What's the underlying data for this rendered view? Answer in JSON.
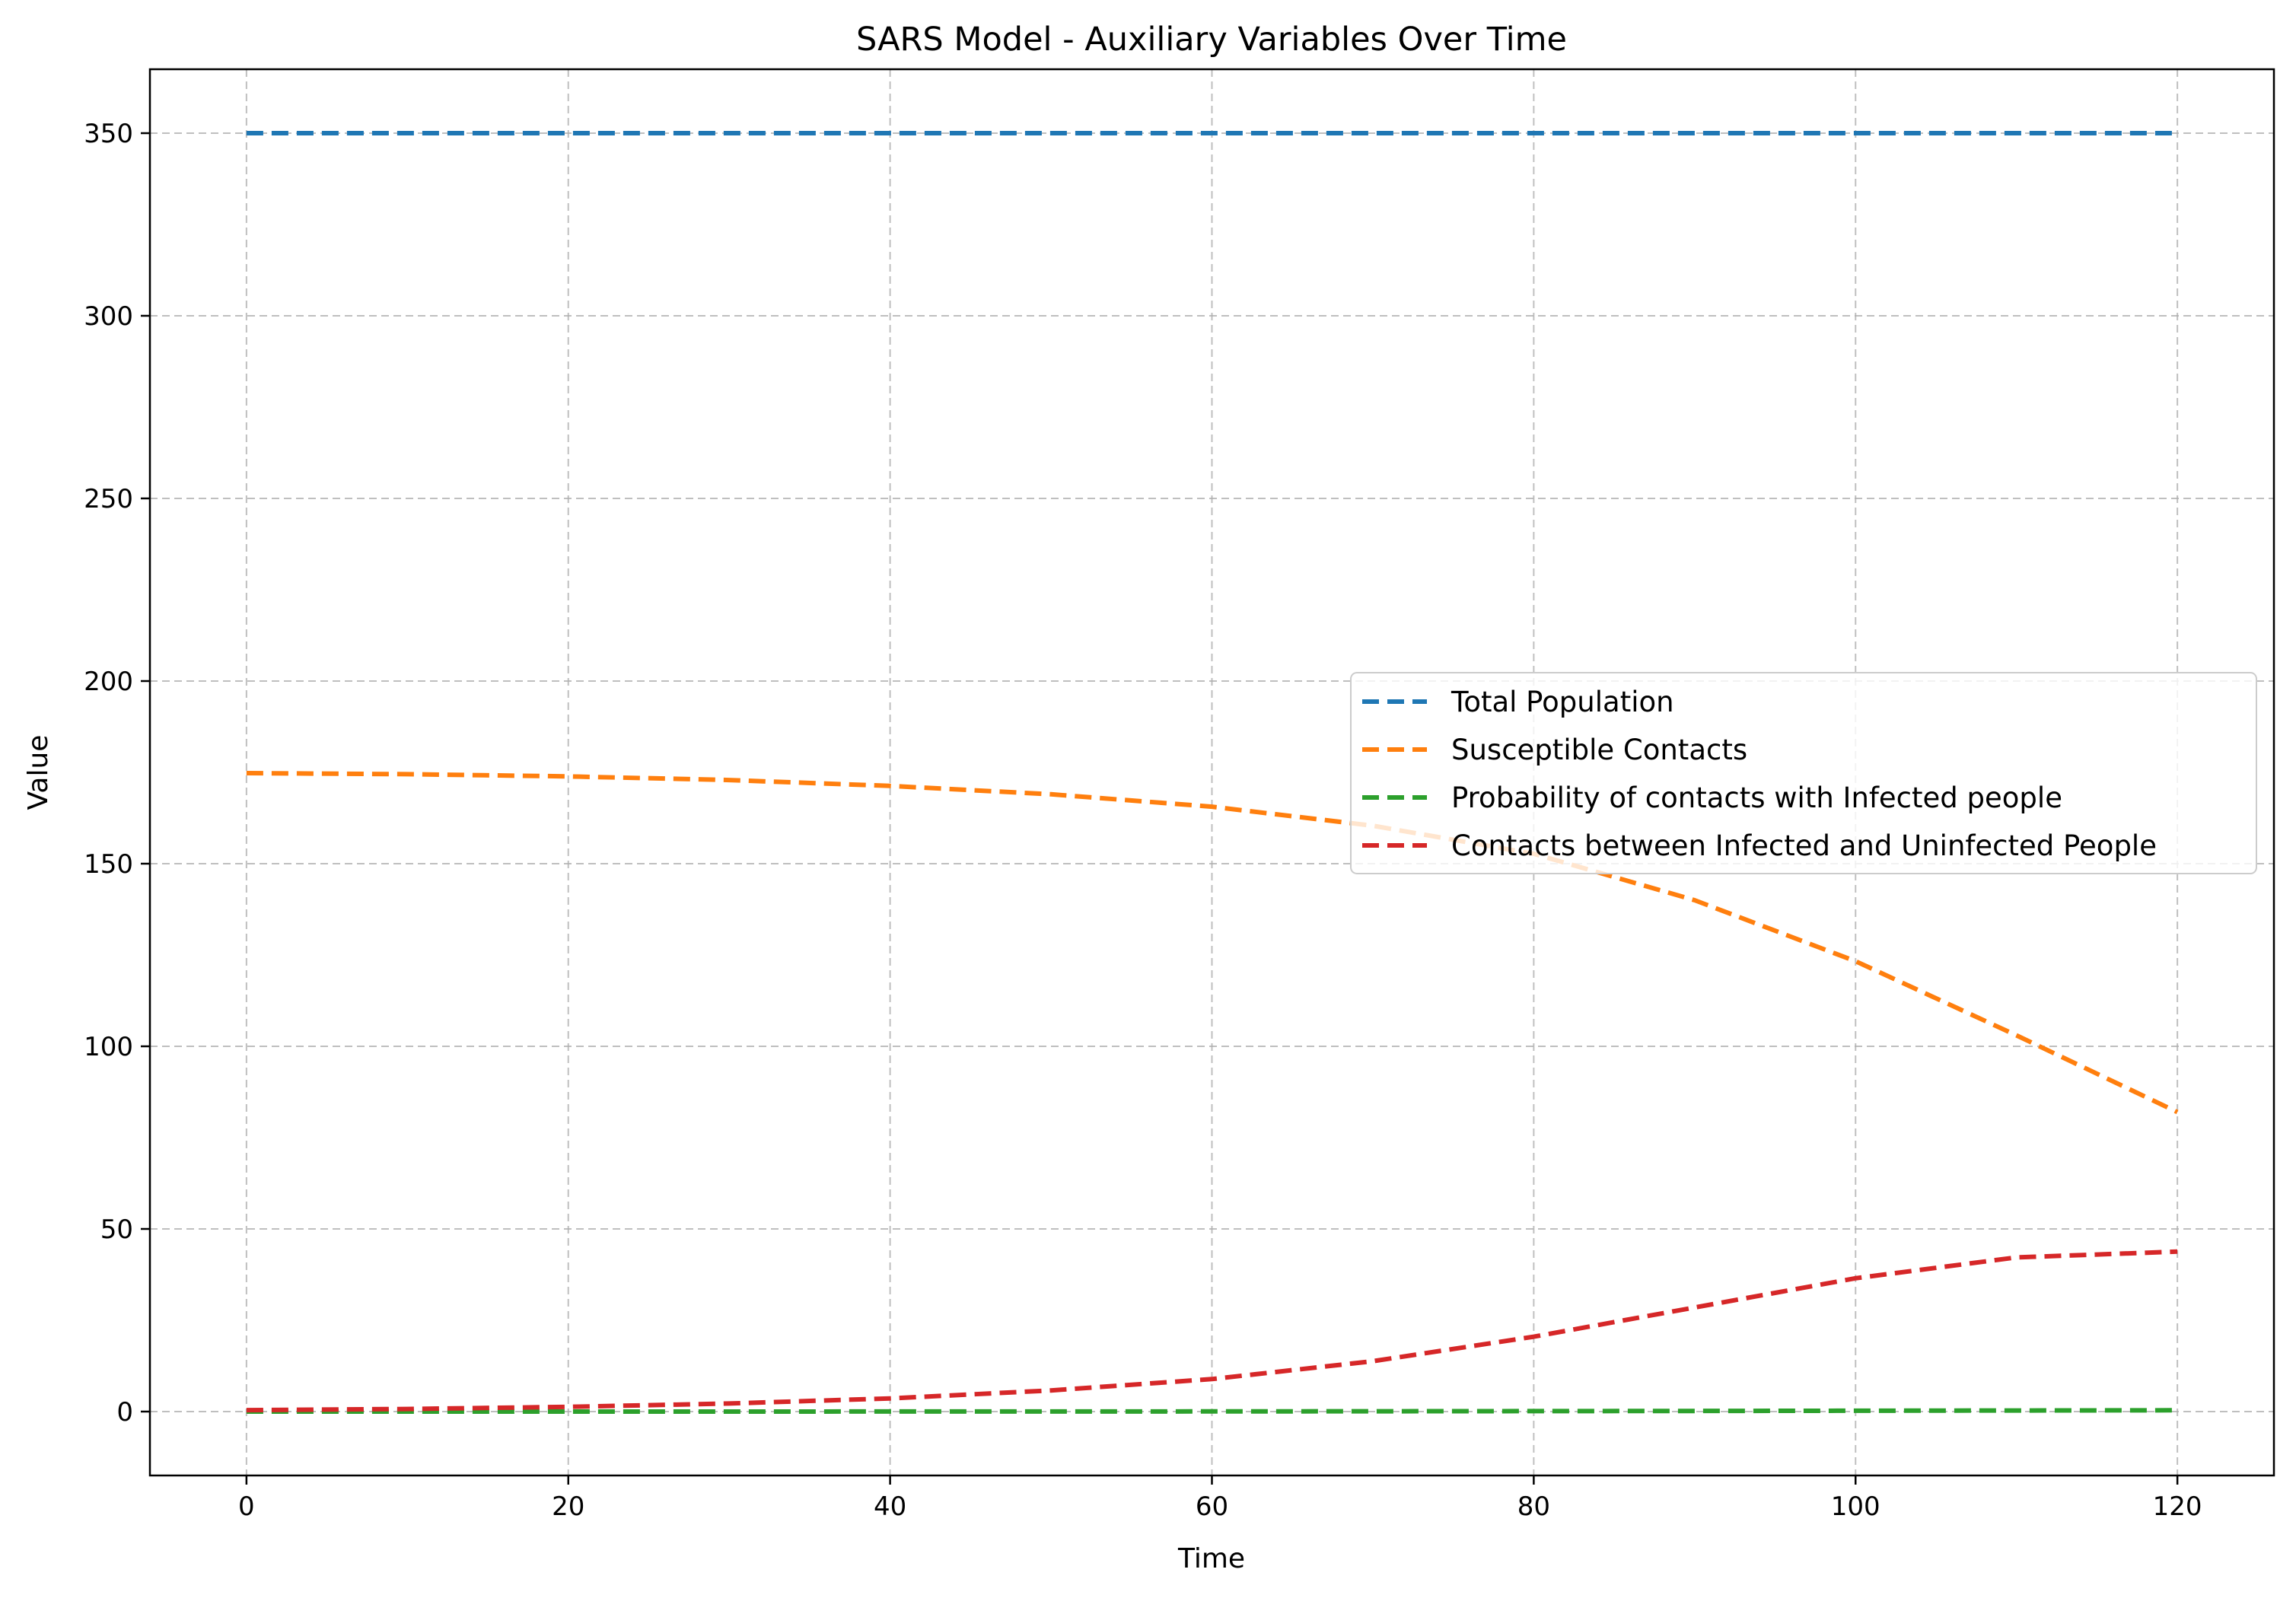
{
  "chart_data": {
    "type": "line",
    "title": "SARS Model - Auxiliary Variables Over Time",
    "xlabel": "Time",
    "ylabel": "Value",
    "xlim": [
      -6,
      126
    ],
    "ylim": [
      -17.5,
      367.5
    ],
    "xticks": [
      0,
      20,
      40,
      60,
      80,
      100,
      120
    ],
    "yticks": [
      0,
      50,
      100,
      150,
      200,
      250,
      300,
      350
    ],
    "grid": true,
    "legend_position": "center-right",
    "x": [
      0,
      10,
      20,
      30,
      40,
      50,
      60,
      70,
      80,
      90,
      100,
      110,
      120
    ],
    "series": [
      {
        "name": "Total Population",
        "color": "#1f77b4",
        "values": [
          350,
          350,
          350,
          350,
          350,
          350,
          350,
          350,
          350,
          350,
          350,
          350,
          350
        ]
      },
      {
        "name": "Susceptible Contacts",
        "color": "#ff7f0e",
        "values": [
          174.8,
          174.5,
          173.9,
          172.9,
          171.3,
          169.0,
          165.6,
          160.4,
          152.7,
          140.0,
          123.3,
          103.0,
          82.0
        ]
      },
      {
        "name": "Probability of contacts with Infected people",
        "color": "#2ca02c",
        "values": [
          0.0,
          0.0,
          0.0,
          0.01,
          0.02,
          0.03,
          0.05,
          0.08,
          0.12,
          0.17,
          0.23,
          0.29,
          0.35
        ]
      },
      {
        "name": "Contacts between Infected and Uninfected People",
        "color": "#d62728",
        "values": [
          0.4,
          0.7,
          1.3,
          2.2,
          3.6,
          5.8,
          8.9,
          13.8,
          20.5,
          28.5,
          36.5,
          42.2,
          43.8
        ]
      }
    ]
  }
}
